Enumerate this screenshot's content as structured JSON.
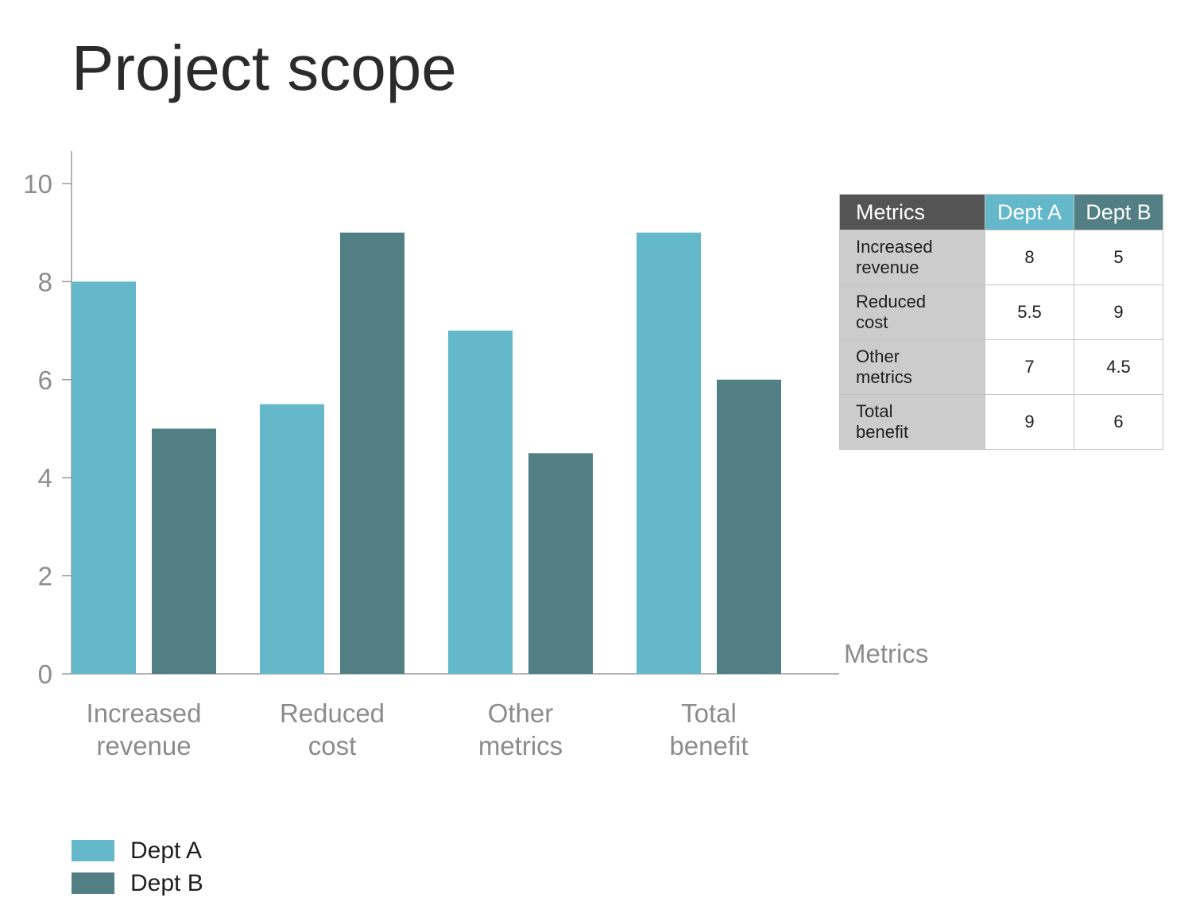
{
  "title": "Project scope",
  "colors": {
    "dept_a": "#64b8ca",
    "dept_b": "#517f84",
    "axis_text": "#8c8c8c",
    "axis_line": "#9a9a9a"
  },
  "chart_data": {
    "type": "bar",
    "title": "Project scope",
    "categories": [
      {
        "line1": "Increased",
        "line2": "revenue"
      },
      {
        "line1": "Reduced",
        "line2": "cost"
      },
      {
        "line1": "Other",
        "line2": "metrics"
      },
      {
        "line1": "Total",
        "line2": "benefit"
      }
    ],
    "series": [
      {
        "name": "Dept A",
        "values": [
          8,
          5.5,
          7,
          9
        ]
      },
      {
        "name": "Dept B",
        "values": [
          5,
          9,
          4.5,
          6
        ]
      }
    ],
    "xlabel": "Metrics",
    "ylabel": "",
    "ylim": [
      0,
      10.6
    ],
    "yticks": [
      "0",
      "2",
      "4",
      "6",
      "8",
      "10"
    ],
    "grid": false,
    "legend_position": "bottom-left"
  },
  "table": {
    "headers": [
      "Metrics",
      "Dept A",
      "Dept B"
    ],
    "rows": [
      {
        "label1": "Increased",
        "label2": "revenue",
        "a": "8",
        "b": "5"
      },
      {
        "label1": "Reduced",
        "label2": "cost",
        "a": "5.5",
        "b": "9"
      },
      {
        "label1": "Other",
        "label2": "metrics",
        "a": "7",
        "b": "4.5"
      },
      {
        "label1": "Total",
        "label2": "benefit",
        "a": "9",
        "b": "6"
      }
    ]
  },
  "legend": [
    {
      "label": "Dept A",
      "color": "#64b8ca"
    },
    {
      "label": "Dept B",
      "color": "#517f84"
    }
  ]
}
